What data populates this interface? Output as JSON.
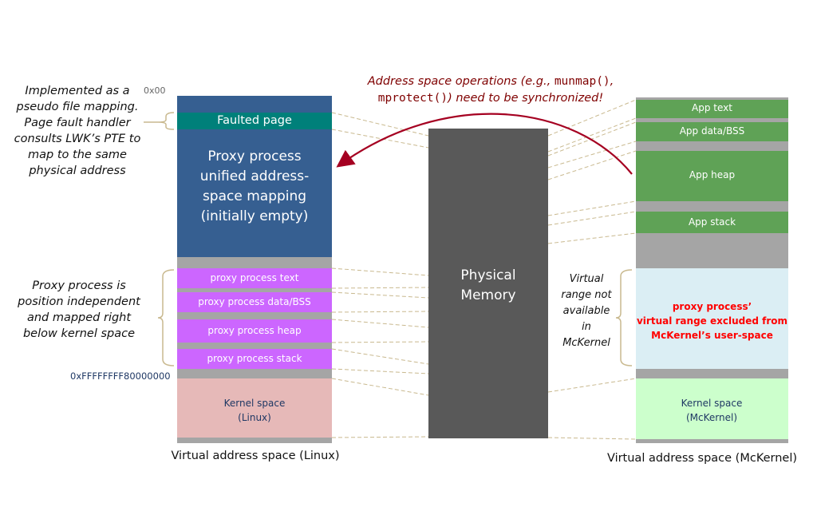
{
  "linux": {
    "addr_top": "0x00",
    "addr_kernel": "0xFFFFFFFF80000000",
    "faulted_page": "Faulted page",
    "unified_mapping": "Proxy process unified address-space mapping (initially empty)",
    "proxy_text": "proxy process text",
    "proxy_data": "proxy process data/BSS",
    "proxy_heap": "proxy process heap",
    "proxy_stack": "proxy process stack",
    "kernel": "Kernel space (Linux)",
    "caption": "Virtual address space (Linux)"
  },
  "physical": {
    "label": "Physical Memory"
  },
  "mckernel": {
    "app_text": "App text",
    "app_data": "App data/BSS",
    "app_heap": "App heap",
    "app_stack": "App stack",
    "excluded_line1": "proxy process’",
    "excluded_line2": "virtual range excluded from",
    "excluded_line3": "McKernel’s user-space",
    "kernel": "Kernel space (McKernel)",
    "caption": "Virtual address space (McKernel)",
    "not_available_note": "Virtual range not available in McKernel"
  },
  "annotations": {
    "pseudo_file": "Implemented as a pseudo file mapping. Page fault handler consults LWK’s PTE to map to the same physical address",
    "position_independent": "Proxy process is position independent and mapped right below kernel space",
    "sync_prefix": "Address space operations (e.g., ",
    "sync_code1": "munmap()",
    "sync_sep": ", ",
    "sync_code2": "mprotect()",
    "sync_suffix": ") need to be synchronized!"
  },
  "colors": {
    "linux_blue": "#365f91",
    "faulted_teal": "#00807a",
    "proxy_purple": "#cc66ff",
    "gray": "#a5a5a5",
    "kernel_pink": "#e6b9b8",
    "physical": "#595959",
    "app_green": "#5fa256",
    "excluded_blue": "#dbeef4",
    "mck_kernel_green": "#ccffcc",
    "arrow_red": "#a50021",
    "dash": "#c9b98f"
  }
}
